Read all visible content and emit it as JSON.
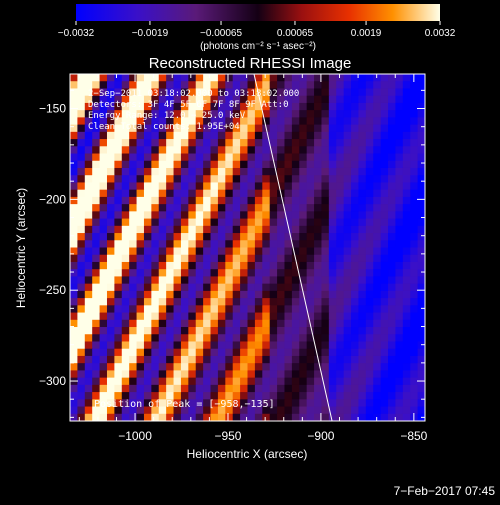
{
  "chart_data": {
    "type": "heatmap",
    "title": "Reconstructed RHESSI Image",
    "xlabel": "Heliocentric X (arcsec)",
    "ylabel": "Heliocentric Y (arcsec)",
    "xlim": [
      -1035,
      -844
    ],
    "ylim": [
      -322,
      -131
    ],
    "x_ticks": [
      -1000,
      -950,
      -900,
      -850
    ],
    "x_tick_labels": [
      "−1000",
      "−950",
      "−900",
      "−850"
    ],
    "y_ticks": [
      -150,
      -200,
      -250,
      -300
    ],
    "y_tick_labels": [
      "−150",
      "−200",
      "−250",
      "−300"
    ],
    "colorbar": {
      "range": [
        -0.0032,
        0.0032
      ],
      "ticks": [
        -0.0032,
        -0.0019,
        -0.00065,
        0.00065,
        0.0019,
        0.0032
      ],
      "tick_labels": [
        "−0.0032",
        "−0.0019",
        "−0.00065",
        "0.00065",
        "0.0019",
        "0.0032"
      ],
      "units_label": "(photons cm⁻² s⁻¹ asec⁻²)"
    },
    "annotations": [
      "2−Sep−2011 03:18:02.000 to 03:18:02.000",
      "Detectors: 3F 4F 5F 6F 7F 8F 9F  Att:0",
      "Energy Range: 12.0 − 25.0 keV",
      "Clean     Total counts: 1.95E+04"
    ],
    "peak_label": "Position of Peak = [−958,−135]",
    "limb_line": [
      [
        -936,
        -131
      ],
      [
        -894,
        -322
      ]
    ]
  },
  "footer": {
    "date": "7−Feb−2017 07:45"
  }
}
